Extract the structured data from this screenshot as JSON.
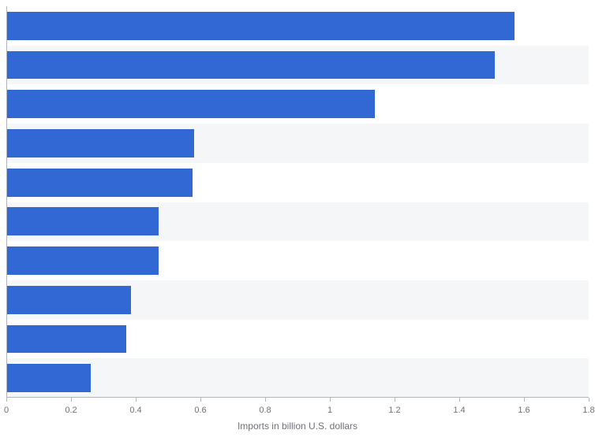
{
  "chart": {
    "type": "bar-horizontal",
    "background_color": "#ffffff",
    "stripe_color": "#f5f6f8",
    "bar_color": "#3268d4",
    "axis_color": "#b0b4bb",
    "text_color": "#6d717a",
    "tick_label_fontsize": 11,
    "xlabel_fontsize": 12,
    "xlabel": "Imports in billion U.S. dollars",
    "xmin": 0,
    "xmax": 1.8,
    "xtick_step": 0.2,
    "xticks": [
      "0",
      "0.2",
      "0.4",
      "0.6",
      "0.8",
      "1",
      "1.2",
      "1.4",
      "1.6",
      "1.8"
    ],
    "bar_fill_ratio": 0.72,
    "values": [
      1.57,
      1.51,
      1.14,
      0.58,
      0.575,
      0.47,
      0.47,
      0.385,
      0.37,
      0.26
    ]
  }
}
